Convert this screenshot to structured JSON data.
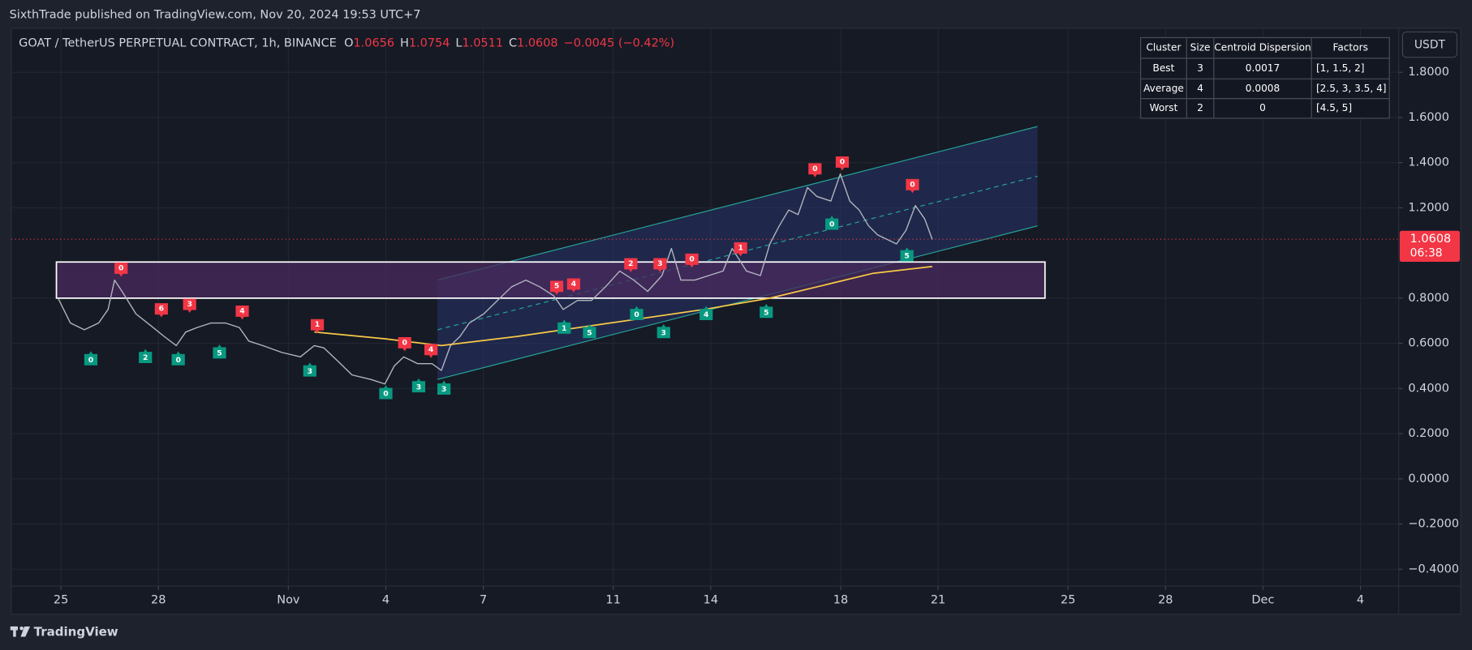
{
  "header": {
    "publisher": "SixthTrade published on TradingView.com, Nov 20, 2024 19:53 UTC+7",
    "symbol": "GOAT / TetherUS PERPETUAL CONTRACT, 1h, BINANCE",
    "ohlc": [
      {
        "key": "O",
        "value": "1.0656"
      },
      {
        "key": "H",
        "value": "1.0754"
      },
      {
        "key": "L",
        "value": "1.0511"
      },
      {
        "key": "C",
        "value": "1.0608"
      }
    ],
    "change": "−0.0045 (−0.42%)",
    "currency": "USDT"
  },
  "chart_data": {
    "type": "line",
    "xlim": [
      -1.53,
      41.18
    ],
    "ylim": [
      -0.475,
      1.995
    ],
    "xticks": [
      {
        "value": 0,
        "label": "25"
      },
      {
        "value": 3,
        "label": "28"
      },
      {
        "value": 7,
        "label": "Nov"
      },
      {
        "value": 10,
        "label": "4"
      },
      {
        "value": 13,
        "label": "7"
      },
      {
        "value": 17,
        "label": "11"
      },
      {
        "value": 20,
        "label": "14"
      },
      {
        "value": 24,
        "label": "18"
      },
      {
        "value": 27,
        "label": "21"
      },
      {
        "value": 31,
        "label": "25"
      },
      {
        "value": 34,
        "label": "28"
      },
      {
        "value": 37,
        "label": "Dec"
      },
      {
        "value": 40,
        "label": "4"
      }
    ],
    "yticks": [
      {
        "value": -0.4,
        "label": "−0.4000"
      },
      {
        "value": -0.2,
        "label": "−0.2000"
      },
      {
        "value": 0,
        "label": "0.0000"
      },
      {
        "value": 0.2,
        "label": "0.2000"
      },
      {
        "value": 0.4,
        "label": "0.4000"
      },
      {
        "value": 0.6,
        "label": "0.6000"
      },
      {
        "value": 0.8,
        "label": "0.8000"
      },
      {
        "value": 1.2,
        "label": "1.2000"
      },
      {
        "value": 1.4,
        "label": "1.4000"
      },
      {
        "value": 1.6,
        "label": "1.6000"
      },
      {
        "value": 1.8,
        "label": "1.8000"
      }
    ],
    "grid": true,
    "series": [
      {
        "color": "#b2b5be",
        "x": [
          -0.09,
          0.29,
          0.72,
          1.16,
          1.45,
          1.65,
          1.88,
          2.31,
          2.75,
          3.18,
          3.55,
          3.84,
          4.19,
          4.62,
          5.06,
          5.49,
          5.78,
          6.21,
          6.79,
          7.37,
          7.8,
          8.09,
          8.53,
          8.96,
          9.54,
          9.97,
          10.26,
          10.55,
          10.98,
          11.42,
          11.71,
          11.99,
          12.28,
          12.57,
          13.01,
          13.44,
          13.87,
          14.31,
          14.74,
          15.17,
          15.46,
          15.9,
          16.33,
          16.76,
          17.2,
          17.63,
          18.06,
          18.5,
          18.79,
          19.08,
          19.51,
          19.94,
          20.38,
          20.66,
          21.1,
          21.53,
          21.82,
          22.11,
          22.4,
          22.69,
          22.98,
          23.27,
          23.7,
          23.99,
          24.28,
          24.57,
          24.86,
          25.14,
          25.43,
          25.72,
          26.01,
          26.3,
          26.59,
          26.82
        ],
        "values": [
          0.8,
          0.69,
          0.66,
          0.69,
          0.75,
          0.88,
          0.83,
          0.73,
          0.68,
          0.63,
          0.59,
          0.65,
          0.67,
          0.69,
          0.69,
          0.67,
          0.61,
          0.59,
          0.56,
          0.54,
          0.59,
          0.58,
          0.52,
          0.46,
          0.44,
          0.42,
          0.5,
          0.54,
          0.51,
          0.51,
          0.48,
          0.59,
          0.63,
          0.69,
          0.73,
          0.79,
          0.85,
          0.88,
          0.85,
          0.81,
          0.75,
          0.79,
          0.79,
          0.85,
          0.92,
          0.88,
          0.83,
          0.9,
          1.02,
          0.88,
          0.88,
          0.9,
          0.92,
          1.02,
          0.92,
          0.9,
          1.04,
          1.12,
          1.19,
          1.17,
          1.29,
          1.25,
          1.23,
          1.35,
          1.23,
          1.19,
          1.12,
          1.08,
          1.06,
          1.04,
          1.1,
          1.21,
          1.15,
          1.06
        ]
      },
      {
        "color": "#f7c948",
        "x": [
          7.8,
          9.97,
          11.71,
          14.02,
          16.91,
          19.8,
          21.82,
          23.27,
          25.0,
          26.82
        ],
        "values": [
          0.65,
          0.62,
          0.59,
          0.63,
          0.69,
          0.75,
          0.8,
          0.85,
          0.91,
          0.94
        ]
      }
    ],
    "signals": [
      {
        "label": "0",
        "side": "sell",
        "x": 1.85,
        "value": 0.92
      },
      {
        "label": "6",
        "side": "sell",
        "x": 3.09,
        "value": 0.74
      },
      {
        "label": "3",
        "side": "sell",
        "x": 3.96,
        "value": 0.76
      },
      {
        "label": "4",
        "side": "sell",
        "x": 5.58,
        "value": 0.73
      },
      {
        "label": "1",
        "side": "sell",
        "x": 7.89,
        "value": 0.67
      },
      {
        "label": "0",
        "side": "sell",
        "x": 10.58,
        "value": 0.59
      },
      {
        "label": "4",
        "side": "sell",
        "x": 11.39,
        "value": 0.56
      },
      {
        "label": "5",
        "side": "sell",
        "x": 15.26,
        "value": 0.84
      },
      {
        "label": "4",
        "side": "sell",
        "x": 15.78,
        "value": 0.85
      },
      {
        "label": "2",
        "side": "sell",
        "x": 17.54,
        "value": 0.94
      },
      {
        "label": "3",
        "side": "sell",
        "x": 18.44,
        "value": 0.94
      },
      {
        "label": "0",
        "side": "sell",
        "x": 19.42,
        "value": 0.96
      },
      {
        "label": "1",
        "side": "sell",
        "x": 20.92,
        "value": 1.01
      },
      {
        "label": "0",
        "side": "sell",
        "x": 23.21,
        "value": 1.36
      },
      {
        "label": "0",
        "side": "sell",
        "x": 24.05,
        "value": 1.39
      },
      {
        "label": "0",
        "side": "sell",
        "x": 26.21,
        "value": 1.29
      },
      {
        "label": "0",
        "side": "buy",
        "x": 0.92,
        "value": 0.54
      },
      {
        "label": "2",
        "side": "buy",
        "x": 2.6,
        "value": 0.55
      },
      {
        "label": "0",
        "side": "buy",
        "x": 3.61,
        "value": 0.54
      },
      {
        "label": "5",
        "side": "buy",
        "x": 4.88,
        "value": 0.57
      },
      {
        "label": "3",
        "side": "buy",
        "x": 7.66,
        "value": 0.49
      },
      {
        "label": "0",
        "side": "buy",
        "x": 10.0,
        "value": 0.39
      },
      {
        "label": "3",
        "side": "buy",
        "x": 11.01,
        "value": 0.42
      },
      {
        "label": "3",
        "side": "buy",
        "x": 11.79,
        "value": 0.41
      },
      {
        "label": "1",
        "side": "buy",
        "x": 15.49,
        "value": 0.68
      },
      {
        "label": "5",
        "side": "buy",
        "x": 16.27,
        "value": 0.66
      },
      {
        "label": "0",
        "side": "buy",
        "x": 17.72,
        "value": 0.74
      },
      {
        "label": "3",
        "side": "buy",
        "x": 18.55,
        "value": 0.66
      },
      {
        "label": "4",
        "side": "buy",
        "x": 19.86,
        "value": 0.74
      },
      {
        "label": "5",
        "side": "buy",
        "x": 21.71,
        "value": 0.75
      },
      {
        "label": "0",
        "side": "buy",
        "x": 23.73,
        "value": 1.14
      },
      {
        "label": "5",
        "side": "buy",
        "x": 26.04,
        "value": 1.0
      }
    ],
    "signal_colors": {
      "sell": "#f23645",
      "buy": "#089981"
    },
    "channel": {
      "x": [
        11.59,
        30.06
      ],
      "upper": [
        0.88,
        1.56
      ],
      "lower": [
        0.44,
        1.12
      ],
      "color": "#26a69a"
    },
    "zone": {
      "x": [
        -0.14,
        30.29
      ],
      "values": [
        0.96,
        0.8
      ],
      "color": "#4a2a5e"
    },
    "last_price": {
      "value": 1.0608,
      "countdown": "06:38",
      "color": "#f23645"
    }
  },
  "table": {
    "columns": [
      "Cluster",
      "Size",
      "Centroid Dispersion",
      "Factors"
    ],
    "rows": [
      [
        "Best",
        "3",
        "0.0017",
        "[1, 1.5, 2]"
      ],
      [
        "Average",
        "4",
        "0.0008",
        "[2.5, 3, 3.5, 4]"
      ],
      [
        "Worst",
        "2",
        "0",
        "[4.5, 5]"
      ]
    ]
  },
  "footer": "TradingView"
}
